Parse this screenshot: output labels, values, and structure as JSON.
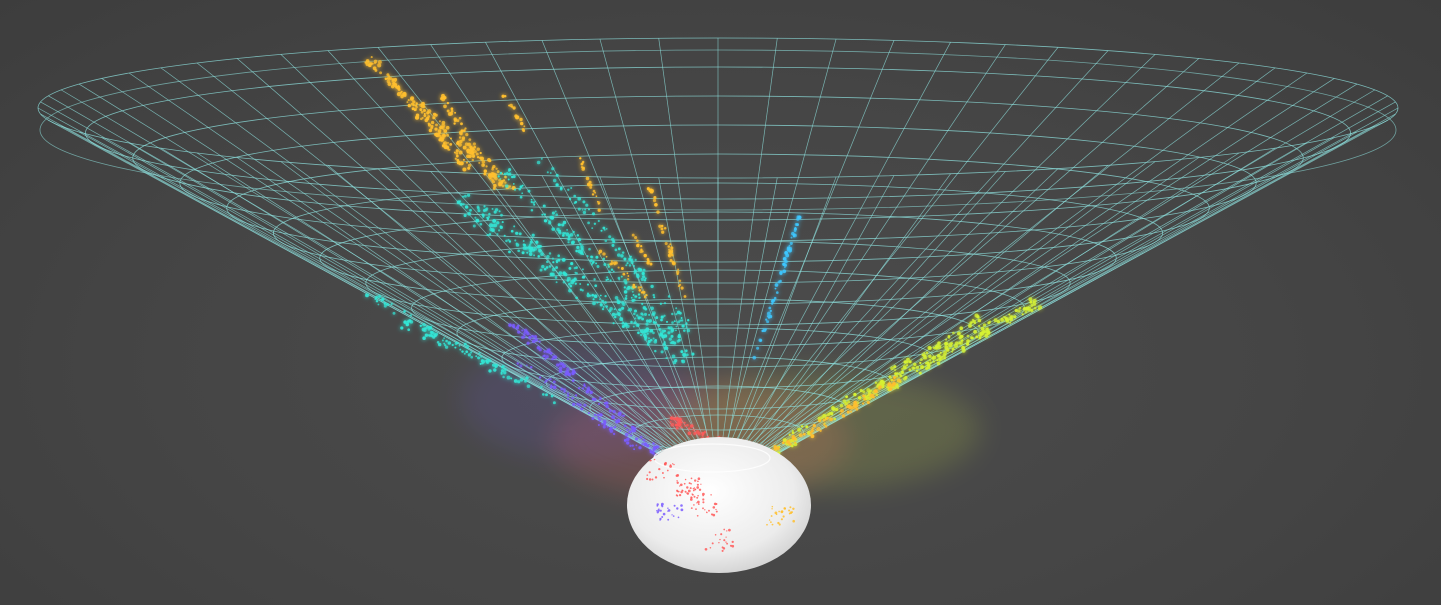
{
  "scene": {
    "description_type": "3d-wireframe-cone-visualization",
    "background_color": "#474747",
    "grid_color": "#8fe3e0",
    "globe_color": "#f2f2f2",
    "clusters": [
      {
        "name": "orange-arm",
        "color": "#ffbf2e"
      },
      {
        "name": "cyan-arm",
        "color": "#33e6d6"
      },
      {
        "name": "violet-arm",
        "color": "#7a5cff"
      },
      {
        "name": "yellow-green-arm",
        "color": "#d6f233"
      },
      {
        "name": "sky-blue-arm",
        "color": "#3dc7ff"
      },
      {
        "name": "red-core",
        "color": "#ff5a5a"
      }
    ]
  }
}
